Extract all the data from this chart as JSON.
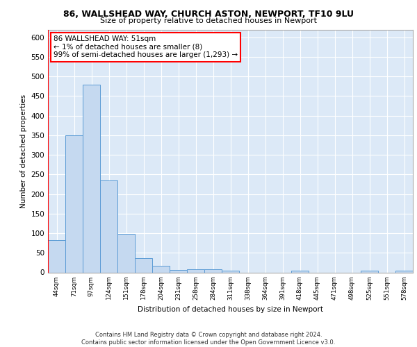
{
  "title1": "86, WALLSHEAD WAY, CHURCH ASTON, NEWPORT, TF10 9LU",
  "title2": "Size of property relative to detached houses in Newport",
  "xlabel": "Distribution of detached houses by size in Newport",
  "ylabel": "Number of detached properties",
  "bar_labels": [
    "44sqm",
    "71sqm",
    "97sqm",
    "124sqm",
    "151sqm",
    "178sqm",
    "204sqm",
    "231sqm",
    "258sqm",
    "284sqm",
    "311sqm",
    "338sqm",
    "364sqm",
    "391sqm",
    "418sqm",
    "445sqm",
    "471sqm",
    "498sqm",
    "525sqm",
    "551sqm",
    "578sqm"
  ],
  "bar_values": [
    83,
    350,
    480,
    235,
    98,
    37,
    17,
    7,
    8,
    8,
    5,
    0,
    0,
    0,
    5,
    0,
    0,
    0,
    5,
    0,
    5
  ],
  "bar_color": "#c5d9f0",
  "bar_edge_color": "#5b9bd5",
  "annotation_box_text": "86 WALLSHEAD WAY: 51sqm\n← 1% of detached houses are smaller (8)\n99% of semi-detached houses are larger (1,293) →",
  "background_color": "#dce9f7",
  "grid_color": "#ffffff",
  "footer_text": "Contains HM Land Registry data © Crown copyright and database right 2024.\nContains public sector information licensed under the Open Government Licence v3.0.",
  "ylim": [
    0,
    620
  ],
  "yticks": [
    0,
    50,
    100,
    150,
    200,
    250,
    300,
    350,
    400,
    450,
    500,
    550,
    600
  ]
}
